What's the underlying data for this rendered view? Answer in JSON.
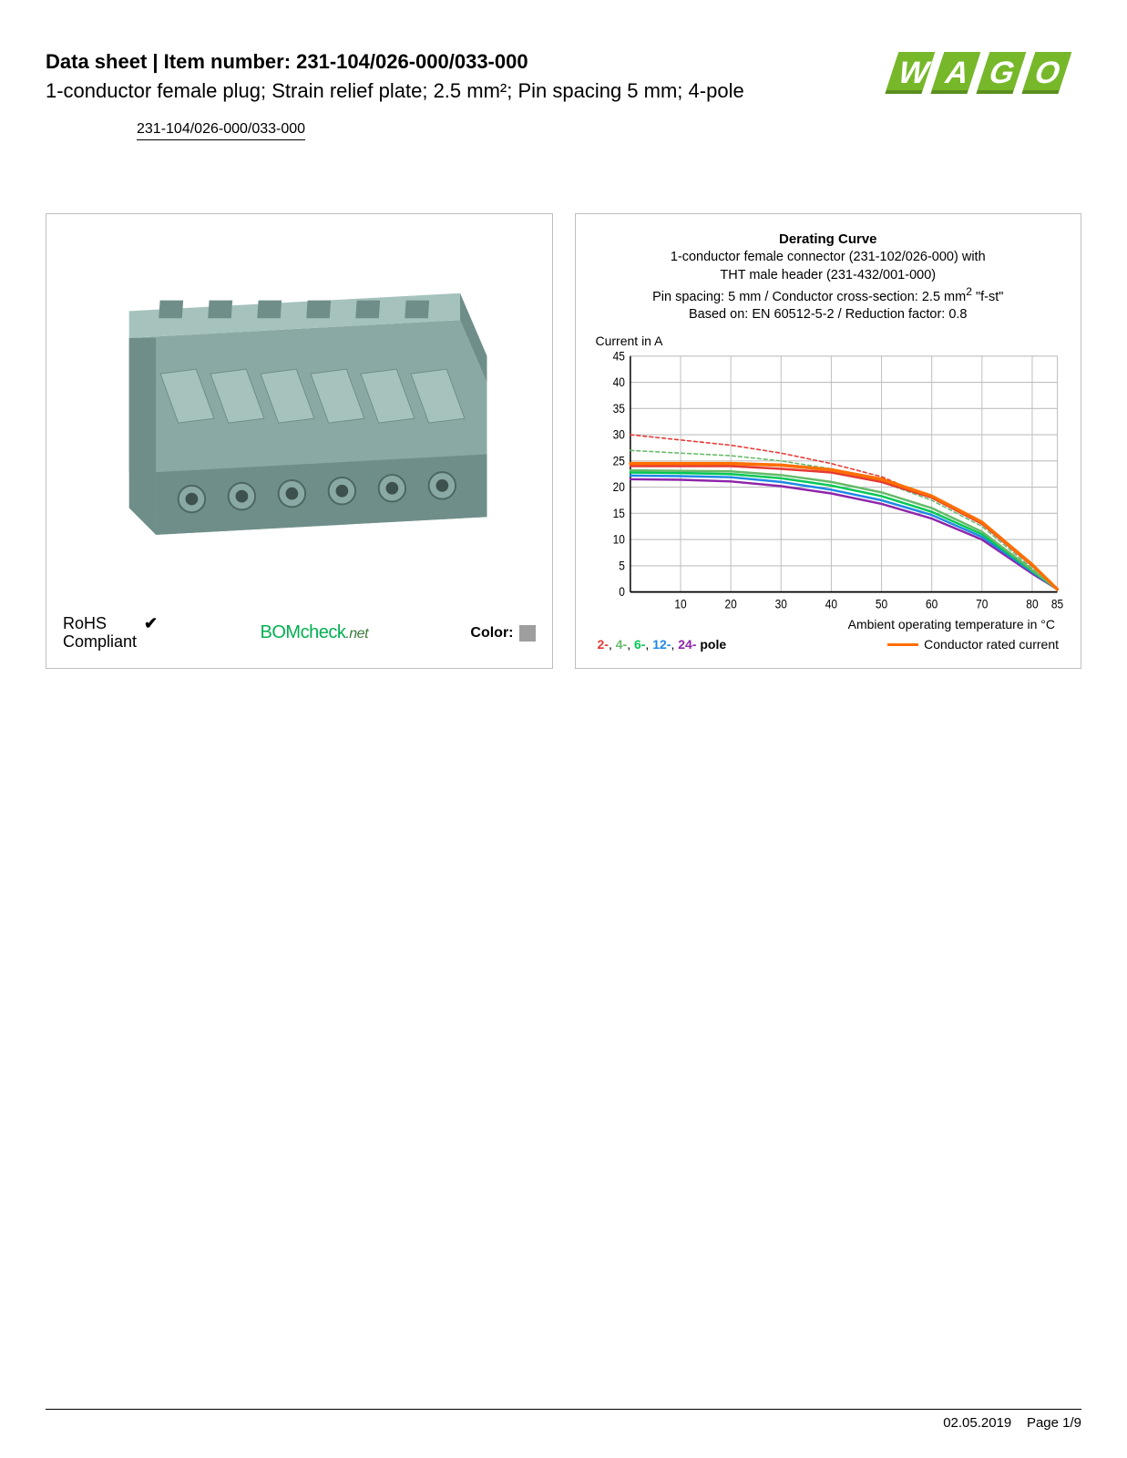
{
  "header": {
    "line1_prefix": "Data sheet",
    "line1_sep": "  |  ",
    "line1_label": "Item number: ",
    "item_number": "231-104/026-000/033-000",
    "description": "1-conductor female plug; Strain relief plate; 2.5 mm²; Pin spacing 5 mm; 4-pole",
    "item_link": "231-104/026-000/033-000",
    "logo_text": "WAGO",
    "logo_color": "#77b82a",
    "logo_shadow": "#5a8f1f"
  },
  "left_panel": {
    "product_color_main": "#8aa9a4",
    "product_color_dark": "#6f8e89",
    "product_color_light": "#a6c2bd",
    "rohs_line1": "RoHS",
    "rohs_line2": "Compliant",
    "check_glyph": "✔",
    "bom_prefix": "BOM",
    "bom_mid": "check",
    "bom_suffix": ".net",
    "color_label": "Color:",
    "color_swatch": "#9e9e9e"
  },
  "chart": {
    "title": "Derating Curve",
    "sub1": "1-conductor female connector (231-102/026-000) with",
    "sub2": "THT male header (231-432/001-000)",
    "sub3_a": "Pin spacing: 5 mm / Conductor cross-section: 2.5 mm",
    "sub3_sup": "2",
    "sub3_b": " \"f-st\"",
    "sub4": "Based on: EN 60512-5-2 / Reduction factor: 0.8",
    "y_label": "Current in A",
    "x_label": "Ambient operating temperature in °C",
    "y_ticks": [
      0,
      5,
      10,
      15,
      20,
      25,
      30,
      35,
      40,
      45
    ],
    "x_ticks": [
      10,
      20,
      30,
      40,
      50,
      60,
      70,
      80,
      85
    ],
    "ylim": [
      0,
      45
    ],
    "xlim": [
      0,
      85
    ],
    "grid_color": "#bfbfbf",
    "axis_color": "#000000",
    "bg": "#ffffff",
    "series": {
      "p2_dash": {
        "color": "#e53935",
        "dash": "4,3",
        "width": 1.4,
        "pts": [
          [
            0,
            30
          ],
          [
            10,
            29
          ],
          [
            20,
            28
          ],
          [
            30,
            26.5
          ],
          [
            40,
            24.5
          ],
          [
            50,
            22
          ],
          [
            60,
            18
          ],
          [
            70,
            13
          ],
          [
            80,
            5
          ],
          [
            85,
            0.5
          ]
        ]
      },
      "p4_dash": {
        "color": "#66bb6a",
        "dash": "4,3",
        "width": 1.4,
        "pts": [
          [
            0,
            27
          ],
          [
            10,
            26.5
          ],
          [
            20,
            26
          ],
          [
            30,
            25
          ],
          [
            40,
            23.5
          ],
          [
            50,
            21
          ],
          [
            60,
            17.5
          ],
          [
            70,
            12.5
          ],
          [
            80,
            4.5
          ],
          [
            85,
            0.5
          ]
        ]
      },
      "p2": {
        "color": "#e53935",
        "dash": "",
        "width": 2.2,
        "pts": [
          [
            0,
            24
          ],
          [
            10,
            24
          ],
          [
            20,
            24
          ],
          [
            30,
            23.5
          ],
          [
            40,
            22.8
          ],
          [
            50,
            21
          ],
          [
            60,
            18
          ],
          [
            70,
            13
          ],
          [
            80,
            5
          ],
          [
            85,
            0.5
          ]
        ]
      },
      "p4": {
        "color": "#66bb6a",
        "dash": "",
        "width": 2.2,
        "pts": [
          [
            0,
            23.2
          ],
          [
            10,
            23.1
          ],
          [
            20,
            23
          ],
          [
            30,
            22.3
          ],
          [
            40,
            21
          ],
          [
            50,
            19
          ],
          [
            60,
            16
          ],
          [
            70,
            11.5
          ],
          [
            80,
            4.2
          ],
          [
            85,
            0.5
          ]
        ]
      },
      "p6": {
        "color": "#00c853",
        "dash": "",
        "width": 2.2,
        "pts": [
          [
            0,
            22.8
          ],
          [
            10,
            22.7
          ],
          [
            20,
            22.5
          ],
          [
            30,
            21.7
          ],
          [
            40,
            20.3
          ],
          [
            50,
            18.3
          ],
          [
            60,
            15.3
          ],
          [
            70,
            11
          ],
          [
            80,
            4
          ],
          [
            85,
            0.5
          ]
        ]
      },
      "p12": {
        "color": "#1e88e5",
        "dash": "",
        "width": 2.2,
        "pts": [
          [
            0,
            22.2
          ],
          [
            10,
            22.1
          ],
          [
            20,
            21.9
          ],
          [
            30,
            21
          ],
          [
            40,
            19.5
          ],
          [
            50,
            17.5
          ],
          [
            60,
            14.7
          ],
          [
            70,
            10.5
          ],
          [
            80,
            3.8
          ],
          [
            85,
            0.5
          ]
        ]
      },
      "p24": {
        "color": "#8e24aa",
        "dash": "",
        "width": 2.2,
        "pts": [
          [
            0,
            21.5
          ],
          [
            10,
            21.4
          ],
          [
            20,
            21.1
          ],
          [
            30,
            20.2
          ],
          [
            40,
            18.8
          ],
          [
            50,
            16.8
          ],
          [
            60,
            14
          ],
          [
            70,
            10
          ],
          [
            80,
            3.5
          ],
          [
            85,
            0.5
          ]
        ]
      },
      "rated": {
        "color": "#ff6f00",
        "dash": "",
        "width": 3.2,
        "pts": [
          [
            0,
            24.5
          ],
          [
            10,
            24.5
          ],
          [
            20,
            24.5
          ],
          [
            30,
            24.2
          ],
          [
            40,
            23.3
          ],
          [
            50,
            21.5
          ],
          [
            60,
            18.3
          ],
          [
            70,
            13.3
          ],
          [
            80,
            5.2
          ],
          [
            85,
            0.5
          ]
        ]
      }
    },
    "legend_poles": [
      {
        "label": "2-",
        "color": "#e53935"
      },
      {
        "label": "4-",
        "color": "#66bb6a"
      },
      {
        "label": "6-",
        "color": "#00c853"
      },
      {
        "label": "12-",
        "color": "#1e88e5"
      },
      {
        "label": "24-",
        "color": "#8e24aa"
      }
    ],
    "legend_poles_suffix": "pole",
    "legend_rated_label": "Conductor rated current",
    "legend_rated_color": "#ff6f00"
  },
  "footer": {
    "date": "02.05.2019",
    "page": "Page 1/9"
  }
}
